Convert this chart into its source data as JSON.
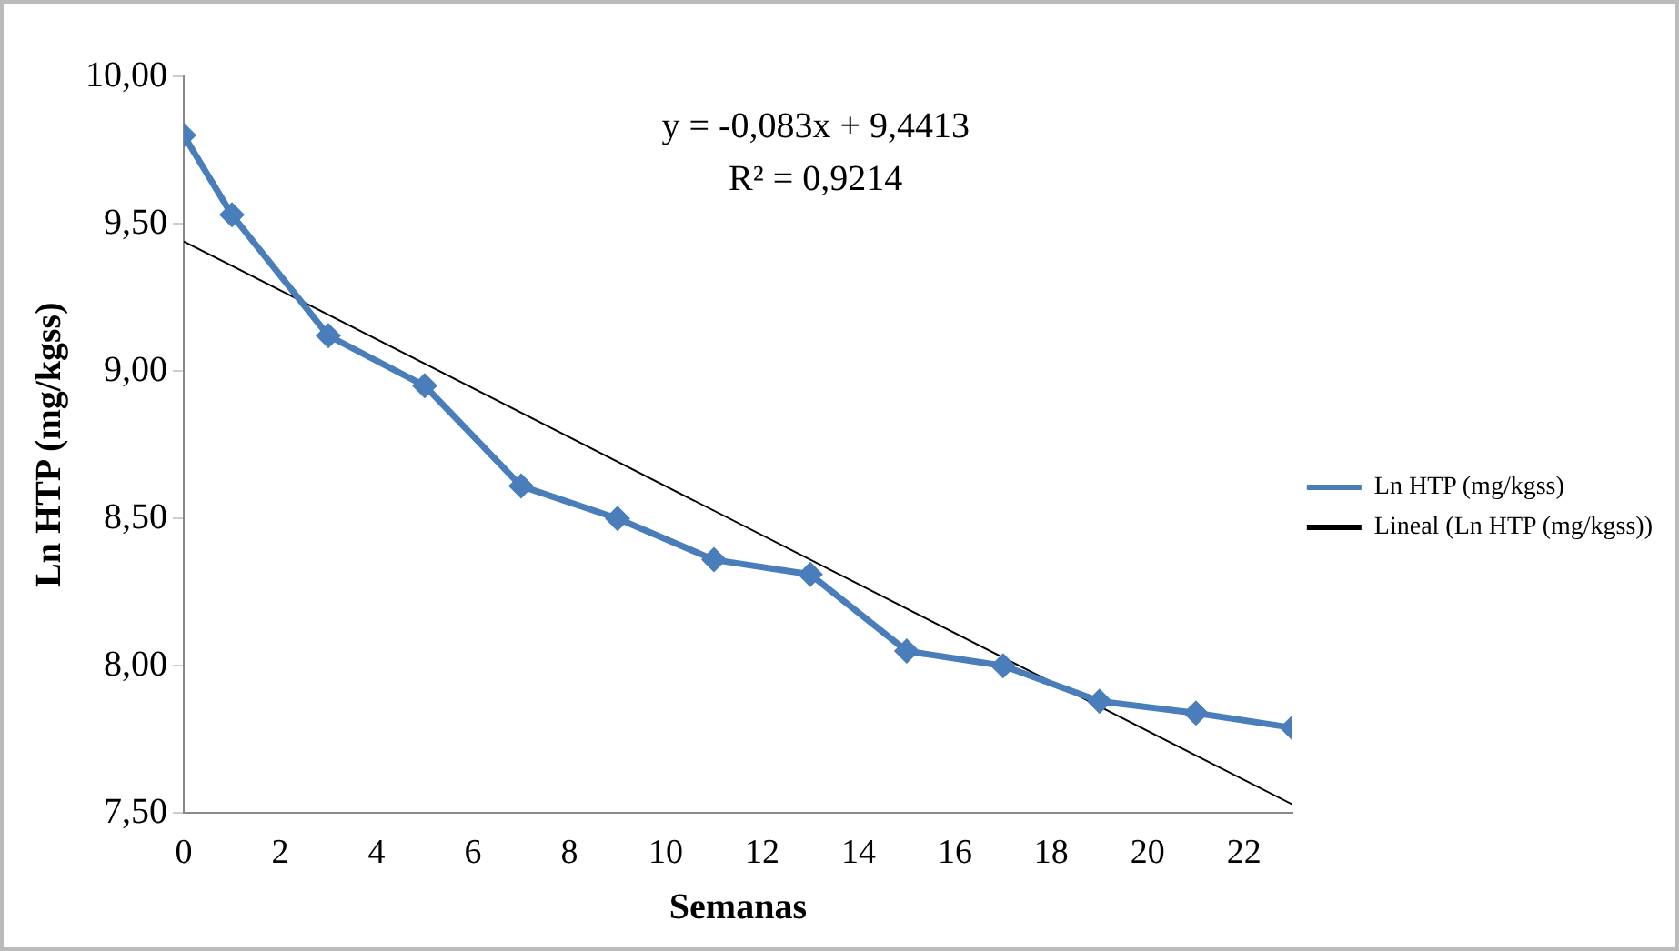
{
  "chart_data": {
    "type": "line",
    "xlabel": "Semanas",
    "ylabel": "Ln HTP (mg/kgss)",
    "x": [
      0,
      1,
      3,
      5,
      7,
      9,
      11,
      13,
      15,
      17,
      19,
      21,
      23
    ],
    "series": [
      {
        "name": "Ln HTP (mg/kgss)",
        "color": "#4a7ebb",
        "values": [
          9.8,
          9.53,
          9.12,
          8.95,
          8.61,
          8.5,
          8.36,
          8.31,
          8.05,
          8.0,
          7.88,
          7.84,
          7.79
        ]
      },
      {
        "name": "Lineal (Ln HTP (mg/kgss))",
        "type": "line",
        "color": "#000000",
        "x": [
          0,
          23
        ],
        "values": [
          9.44,
          7.53
        ],
        "marker": "none"
      }
    ],
    "xlim": [
      0,
      23
    ],
    "xticks": [
      0,
      2,
      4,
      6,
      8,
      10,
      12,
      14,
      16,
      18,
      20,
      22
    ],
    "ylim": [
      7.5,
      10
    ],
    "yticks": [
      {
        "value": 7.5,
        "label": "7,50"
      },
      {
        "value": 8,
        "label": "8,00"
      },
      {
        "value": 8.5,
        "label": "8,50"
      },
      {
        "value": 9,
        "label": "9,00"
      },
      {
        "value": 9.5,
        "label": "9,50"
      },
      {
        "value": 10,
        "label": "10,00"
      }
    ],
    "annotations": [
      "y = -0,083x + 9,4413",
      "R² = 0,9214"
    ],
    "grid": false,
    "legend": "right",
    "marker": "diamond"
  }
}
